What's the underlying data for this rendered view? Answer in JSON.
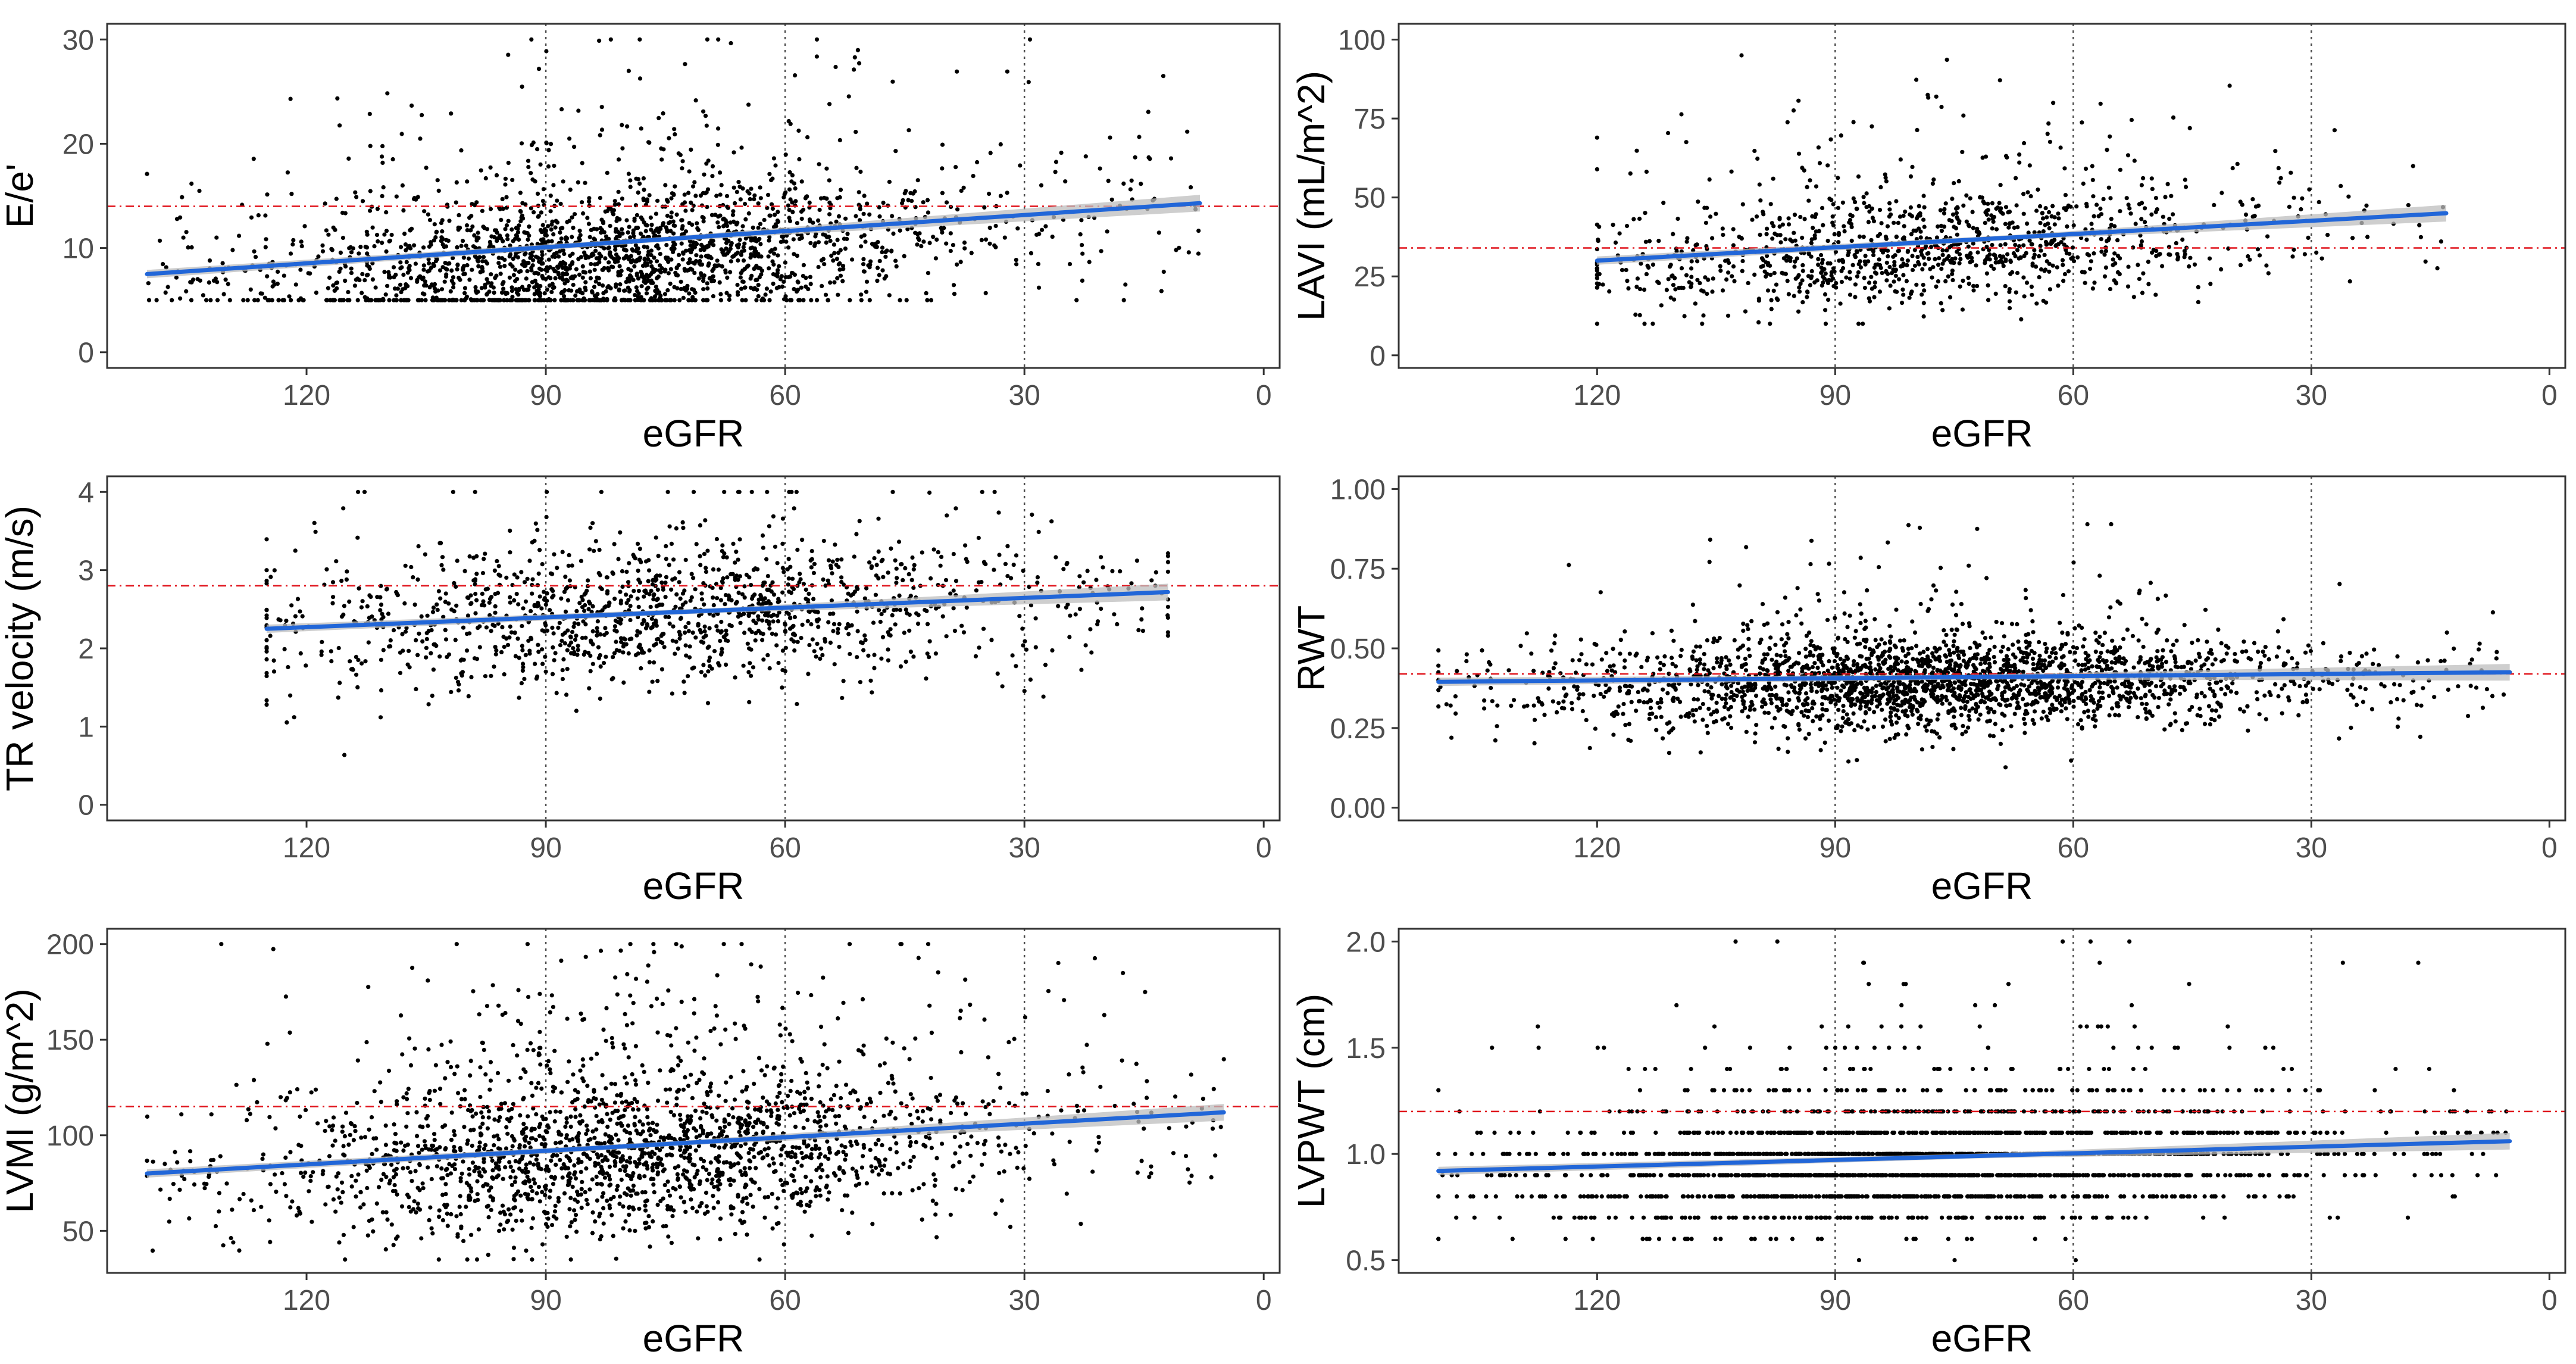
{
  "chart_data": [
    {
      "type": "scatter",
      "xlabel": "eGFR",
      "ylabel": "E/e'",
      "xlim": [
        145,
        -2
      ],
      "ylim": [
        -1.5,
        31.5
      ],
      "xticks": [
        120,
        90,
        60,
        30,
        0
      ],
      "yticks": [
        0,
        10,
        20,
        30
      ],
      "vlines": [
        90,
        60,
        30
      ],
      "reference_y": 14,
      "trend": {
        "x": [
          140,
          8
        ],
        "y": [
          7.5,
          14.3
        ]
      },
      "distribution": {
        "x_min": 8,
        "x_max": 140,
        "x_center": 82,
        "x_spread": 20,
        "y_center": 9,
        "y_spread": 3.2,
        "y_min": 5,
        "y_max": 30,
        "n_points": 2200,
        "skew": 0.5
      }
    },
    {
      "type": "scatter",
      "xlabel": "eGFR",
      "ylabel": "LAVI (mL/m^2)",
      "xlim": [
        145,
        -2
      ],
      "ylim": [
        -4,
        105
      ],
      "xticks": [
        120,
        90,
        60,
        30,
        0
      ],
      "yticks": [
        0,
        25,
        50,
        75,
        100
      ],
      "vlines": [
        90,
        60,
        30
      ],
      "reference_y": 34,
      "trend": {
        "x": [
          120,
          13
        ],
        "y": [
          30,
          45
        ]
      },
      "distribution": {
        "x_min": 13,
        "x_max": 120,
        "x_center": 80,
        "x_spread": 20,
        "y_center": 33,
        "y_spread": 9,
        "y_min": 10,
        "y_max": 95,
        "n_points": 1150,
        "skew": 0.45
      }
    },
    {
      "type": "scatter",
      "xlabel": "eGFR",
      "ylabel": "TR velocity (m/s)",
      "xlim": [
        145,
        -2
      ],
      "ylim": [
        -0.2,
        4.2
      ],
      "xticks": [
        120,
        90,
        60,
        30,
        0
      ],
      "yticks": [
        0,
        1,
        2,
        3,
        4
      ],
      "vlines": [
        90,
        60,
        30
      ],
      "reference_y": 2.8,
      "trend": {
        "x": [
          125,
          12
        ],
        "y": [
          2.25,
          2.72
        ]
      },
      "distribution": {
        "x_min": 12,
        "x_max": 125,
        "x_center": 75,
        "x_spread": 24,
        "y_center": 2.45,
        "y_spread": 0.45,
        "y_min": 0.2,
        "y_max": 4.0,
        "n_points": 1350,
        "skew": 0.15
      }
    },
    {
      "type": "scatter",
      "xlabel": "eGFR",
      "ylabel": "RWT",
      "xlim": [
        145,
        -2
      ],
      "ylim": [
        -0.04,
        1.04
      ],
      "xticks": [
        120,
        90,
        60,
        30,
        0
      ],
      "yticks": [
        "0.00",
        "0.25",
        "0.50",
        "0.75",
        "1.00"
      ],
      "vlines": [
        90,
        60,
        30
      ],
      "reference_y": 0.42,
      "trend": {
        "x": [
          140,
          5
        ],
        "y": [
          0.395,
          0.425
        ]
      },
      "distribution": {
        "x_min": 5,
        "x_max": 140,
        "x_center": 78,
        "x_spread": 22,
        "y_center": 0.39,
        "y_spread": 0.075,
        "y_min": 0.12,
        "y_max": 1.0,
        "n_points": 2400,
        "skew": 0.25
      }
    },
    {
      "type": "scatter",
      "xlabel": "eGFR",
      "ylabel": "LVMI (g/m^2)",
      "xlim": [
        145,
        -2
      ],
      "ylim": [
        28,
        208
      ],
      "xticks": [
        120,
        90,
        60,
        30,
        0
      ],
      "yticks": [
        50,
        100,
        150,
        200
      ],
      "vlines": [
        90,
        60,
        30
      ],
      "reference_y": 115,
      "trend": {
        "x": [
          140,
          5
        ],
        "y": [
          80,
          112
        ]
      },
      "distribution": {
        "x_min": 5,
        "x_max": 140,
        "x_center": 80,
        "x_spread": 22,
        "y_center": 88,
        "y_spread": 20,
        "y_min": 35,
        "y_max": 200,
        "n_points": 2100,
        "skew": 0.55
      }
    },
    {
      "type": "scatter",
      "xlabel": "eGFR",
      "ylabel": "LVPWT (cm)",
      "xlim": [
        145,
        -2
      ],
      "ylim": [
        0.44,
        2.06
      ],
      "xticks": [
        120,
        90,
        60,
        30,
        0
      ],
      "yticks": [
        "0.5",
        "1.0",
        "1.5",
        "2.0"
      ],
      "vlines": [
        90,
        60,
        30
      ],
      "reference_y": 1.2,
      "trend": {
        "x": [
          140,
          5
        ],
        "y": [
          0.92,
          1.06
        ]
      },
      "distribution": {
        "x_min": 5,
        "x_max": 140,
        "x_center": 78,
        "x_spread": 22,
        "y_center": 0.95,
        "y_spread": 0.14,
        "y_min": 0.5,
        "y_max": 2.0,
        "n_points": 2400,
        "skew": 0.35,
        "y_step": 0.1
      }
    }
  ],
  "colors": {
    "points": "#000000",
    "trend_line": "#2166d8",
    "confidence_band": "#bdbdbd",
    "reference_line": "#e0121a",
    "vertical_lines": "#4d4d4d",
    "frame": "#333333"
  }
}
